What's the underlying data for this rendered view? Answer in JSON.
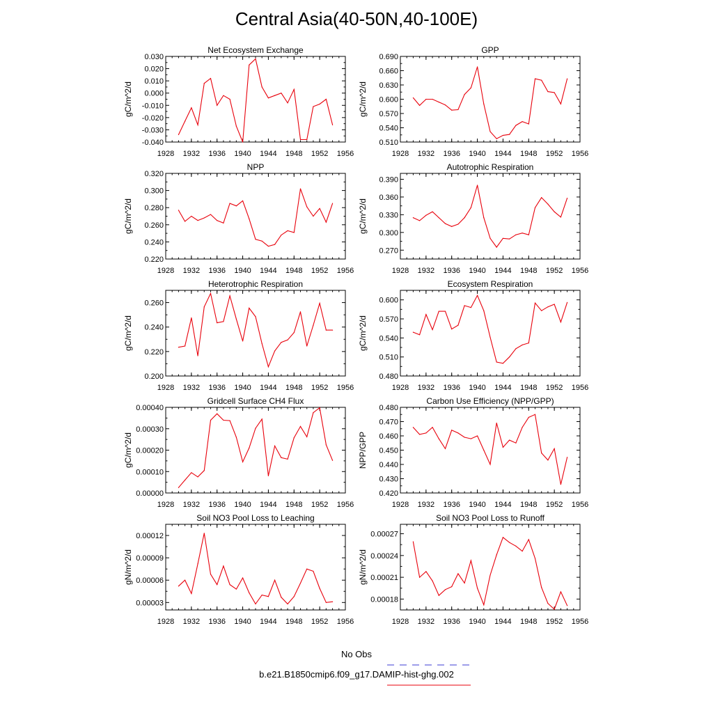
{
  "figure": {
    "title": "Central Asia(40-50N,40-100E)",
    "line_color": "#e8000b",
    "legend": {
      "obs_label": "No Obs",
      "obs_color": "#3b3bd6",
      "model_label": "b.e21.B1850cmip6.f09_g17.DAMIP-hist-ghg.002",
      "model_color": "#e8000b"
    }
  },
  "chart_data": [
    {
      "type": "line",
      "title": "Net Ecosystem Exchange",
      "ylabel": "gC/m^2/d",
      "xlim": [
        1928,
        1956
      ],
      "xticks": [
        1928,
        1932,
        1936,
        1940,
        1944,
        1948,
        1952,
        1956
      ],
      "ylim": [
        -0.04,
        0.03
      ],
      "yticks": [
        "-0.040",
        "-0.030",
        "-0.020",
        "-0.010",
        "0.000",
        "0.010",
        "0.020",
        "0.030"
      ],
      "grid": false,
      "x": [
        1930,
        1931,
        1932,
        1933,
        1934,
        1935,
        1936,
        1937,
        1938,
        1939,
        1940,
        1941,
        1942,
        1943,
        1944,
        1945,
        1946,
        1947,
        1948,
        1949,
        1950,
        1951,
        1952,
        1953,
        1954
      ],
      "values": [
        -0.034,
        -0.023,
        -0.012,
        -0.026,
        0.008,
        0.012,
        -0.01,
        -0.002,
        -0.005,
        -0.027,
        -0.04,
        0.023,
        0.028,
        0.005,
        -0.004,
        -0.002,
        0.0,
        -0.008,
        0.003,
        -0.038,
        -0.038,
        -0.011,
        -0.009,
        -0.005,
        -0.026
      ]
    },
    {
      "type": "line",
      "title": "GPP",
      "ylabel": "gC/m^2/d",
      "xlim": [
        1928,
        1956
      ],
      "xticks": [
        1928,
        1932,
        1936,
        1940,
        1944,
        1948,
        1952,
        1956
      ],
      "ylim": [
        0.51,
        0.69
      ],
      "yticks": [
        "0.510",
        "0.540",
        "0.570",
        "0.600",
        "0.630",
        "0.660",
        "0.690"
      ],
      "grid": false,
      "x": [
        1930,
        1931,
        1932,
        1933,
        1934,
        1935,
        1936,
        1937,
        1938,
        1939,
        1940,
        1941,
        1942,
        1943,
        1944,
        1945,
        1946,
        1947,
        1948,
        1949,
        1950,
        1951,
        1952,
        1953,
        1954
      ],
      "values": [
        0.603,
        0.587,
        0.6,
        0.6,
        0.594,
        0.588,
        0.577,
        0.578,
        0.61,
        0.624,
        0.668,
        0.59,
        0.532,
        0.517,
        0.524,
        0.526,
        0.545,
        0.553,
        0.548,
        0.643,
        0.64,
        0.616,
        0.614,
        0.59,
        0.643
      ]
    },
    {
      "type": "line",
      "title": "NPP",
      "ylabel": "gC/m^2/d",
      "xlim": [
        1928,
        1956
      ],
      "xticks": [
        1928,
        1932,
        1936,
        1940,
        1944,
        1948,
        1952,
        1956
      ],
      "ylim": [
        0.22,
        0.32
      ],
      "yticks": [
        "0.220",
        "0.240",
        "0.260",
        "0.280",
        "0.300",
        "0.320"
      ],
      "grid": false,
      "x": [
        1930,
        1931,
        1932,
        1933,
        1934,
        1935,
        1936,
        1937,
        1938,
        1939,
        1940,
        1941,
        1942,
        1943,
        1944,
        1945,
        1946,
        1947,
        1948,
        1949,
        1950,
        1951,
        1952,
        1953,
        1954
      ],
      "values": [
        0.277,
        0.264,
        0.27,
        0.265,
        0.268,
        0.272,
        0.265,
        0.262,
        0.285,
        0.282,
        0.288,
        0.267,
        0.243,
        0.241,
        0.235,
        0.237,
        0.248,
        0.253,
        0.251,
        0.302,
        0.281,
        0.27,
        0.279,
        0.263,
        0.285
      ]
    },
    {
      "type": "line",
      "title": "Autotrophic Respiration",
      "ylabel": "gC/m^2/d",
      "xlim": [
        1928,
        1956
      ],
      "xticks": [
        1928,
        1932,
        1936,
        1940,
        1944,
        1948,
        1952,
        1956
      ],
      "ylim": [
        0.255,
        0.4
      ],
      "yticks": [
        "0.270",
        "0.300",
        "0.330",
        "0.360",
        "0.390"
      ],
      "grid": false,
      "x": [
        1930,
        1931,
        1932,
        1933,
        1934,
        1935,
        1936,
        1937,
        1938,
        1939,
        1940,
        1941,
        1942,
        1943,
        1944,
        1945,
        1946,
        1947,
        1948,
        1949,
        1950,
        1951,
        1952,
        1953,
        1954
      ],
      "values": [
        0.325,
        0.32,
        0.329,
        0.335,
        0.325,
        0.315,
        0.31,
        0.314,
        0.325,
        0.342,
        0.38,
        0.325,
        0.29,
        0.275,
        0.29,
        0.289,
        0.296,
        0.299,
        0.296,
        0.342,
        0.359,
        0.348,
        0.335,
        0.326,
        0.358
      ]
    },
    {
      "type": "line",
      "title": "Heterotrophic Respiration",
      "ylabel": "gC/m^2/d",
      "xlim": [
        1928,
        1956
      ],
      "xticks": [
        1928,
        1932,
        1936,
        1940,
        1944,
        1948,
        1952,
        1956
      ],
      "ylim": [
        0.2,
        0.27
      ],
      "yticks": [
        "0.200",
        "0.220",
        "0.240",
        "0.260"
      ],
      "grid": false,
      "x": [
        1930,
        1931,
        1932,
        1933,
        1934,
        1935,
        1936,
        1937,
        1938,
        1939,
        1940,
        1941,
        1942,
        1943,
        1944,
        1945,
        1946,
        1947,
        1948,
        1949,
        1950,
        1951,
        1952,
        1953,
        1954
      ],
      "values": [
        0.2235,
        0.2245,
        0.2475,
        0.2165,
        0.2565,
        0.2675,
        0.2435,
        0.2445,
        0.2655,
        0.2465,
        0.2285,
        0.2555,
        0.2485,
        0.2265,
        0.2075,
        0.2205,
        0.2275,
        0.2295,
        0.2355,
        0.2525,
        0.2245,
        0.2415,
        0.2595,
        0.2375,
        0.2375
      ]
    },
    {
      "type": "line",
      "title": "Ecosystem Respiration",
      "ylabel": "gC/m^2/d",
      "xlim": [
        1928,
        1956
      ],
      "xticks": [
        1928,
        1932,
        1936,
        1940,
        1944,
        1948,
        1952,
        1956
      ],
      "ylim": [
        0.48,
        0.615
      ],
      "yticks": [
        "0.480",
        "0.510",
        "0.540",
        "0.570",
        "0.600"
      ],
      "grid": false,
      "x": [
        1930,
        1931,
        1932,
        1933,
        1934,
        1935,
        1936,
        1937,
        1938,
        1939,
        1940,
        1941,
        1942,
        1943,
        1944,
        1945,
        1946,
        1947,
        1948,
        1949,
        1950,
        1951,
        1952,
        1953,
        1954
      ],
      "values": [
        0.549,
        0.545,
        0.577,
        0.553,
        0.582,
        0.582,
        0.554,
        0.56,
        0.591,
        0.588,
        0.607,
        0.583,
        0.541,
        0.502,
        0.5,
        0.51,
        0.523,
        0.529,
        0.532,
        0.595,
        0.583,
        0.589,
        0.593,
        0.565,
        0.596
      ]
    },
    {
      "type": "line",
      "title": "Gridcell Surface CH4 Flux",
      "ylabel": "gC/m^2/d",
      "xlim": [
        1928,
        1956
      ],
      "xticks": [
        1928,
        1932,
        1936,
        1940,
        1944,
        1948,
        1952,
        1956
      ],
      "ylim": [
        0.0,
        0.0004
      ],
      "yticks": [
        "0.00000",
        "0.00010",
        "0.00020",
        "0.00030",
        "0.00040"
      ],
      "grid": false,
      "x": [
        1930,
        1931,
        1932,
        1933,
        1934,
        1935,
        1936,
        1937,
        1938,
        1939,
        1940,
        1941,
        1942,
        1943,
        1944,
        1945,
        1946,
        1947,
        1948,
        1949,
        1950,
        1951,
        1952,
        1953,
        1954
      ],
      "values": [
        2.5e-05,
        6e-05,
        9.5e-05,
        7.5e-05,
        0.000105,
        0.00034,
        0.00037,
        0.00034,
        0.000338,
        0.00026,
        0.000145,
        0.00021,
        0.000302,
        0.000345,
        8e-05,
        0.00022,
        0.000165,
        0.000158,
        0.000258,
        0.000311,
        0.000262,
        0.000375,
        0.000398,
        0.000225,
        0.000152
      ]
    },
    {
      "type": "line",
      "title": "Carbon Use Efficiency (NPP/GPP)",
      "ylabel": "NPP/GPP",
      "xlim": [
        1928,
        1956
      ],
      "xticks": [
        1928,
        1932,
        1936,
        1940,
        1944,
        1948,
        1952,
        1956
      ],
      "ylim": [
        0.42,
        0.48
      ],
      "yticks": [
        "0.420",
        "0.430",
        "0.440",
        "0.450",
        "0.460",
        "0.470",
        "0.480"
      ],
      "grid": false,
      "x": [
        1930,
        1931,
        1932,
        1933,
        1934,
        1935,
        1936,
        1937,
        1938,
        1939,
        1940,
        1941,
        1942,
        1943,
        1944,
        1945,
        1946,
        1947,
        1948,
        1949,
        1950,
        1951,
        1952,
        1953,
        1954
      ],
      "values": [
        0.466,
        0.461,
        0.462,
        0.466,
        0.458,
        0.451,
        0.464,
        0.462,
        0.459,
        0.458,
        0.46,
        0.45,
        0.44,
        0.469,
        0.452,
        0.457,
        0.455,
        0.466,
        0.473,
        0.475,
        0.448,
        0.443,
        0.451,
        0.426,
        0.445
      ]
    },
    {
      "type": "line",
      "title": "Soil NO3 Pool Loss to Leaching",
      "ylabel": "gN/m^2/d",
      "xlim": [
        1928,
        1956
      ],
      "xticks": [
        1928,
        1932,
        1936,
        1940,
        1944,
        1948,
        1952,
        1956
      ],
      "ylim": [
        2e-05,
        0.000135
      ],
      "yticks": [
        "0.00003",
        "0.00006",
        "0.00009",
        "0.00012"
      ],
      "grid": false,
      "x": [
        1930,
        1931,
        1932,
        1933,
        1934,
        1935,
        1936,
        1937,
        1938,
        1939,
        1940,
        1941,
        1942,
        1943,
        1944,
        1945,
        1946,
        1947,
        1948,
        1949,
        1950,
        1951,
        1952,
        1953,
        1954
      ],
      "values": [
        5.2e-05,
        6e-05,
        4.2e-05,
        8.2e-05,
        0.000123,
        6.8e-05,
        5.4e-05,
        7.9e-05,
        5.4e-05,
        4.8e-05,
        6.3e-05,
        4.3e-05,
        2.8e-05,
        4e-05,
        3.8e-05,
        6e-05,
        3.7e-05,
        2.8e-05,
        3.8e-05,
        5.6e-05,
        7.5e-05,
        7.2e-05,
        4.9e-05,
        3e-05,
        3.1e-05
      ]
    },
    {
      "type": "line",
      "title": "Soil NO3 Pool Loss to Runoff",
      "ylabel": "gN/m^2/d",
      "xlim": [
        1928,
        1956
      ],
      "xticks": [
        1928,
        1932,
        1936,
        1940,
        1944,
        1948,
        1952,
        1956
      ],
      "ylim": [
        0.000165,
        0.000283
      ],
      "yticks": [
        "0.00018",
        "0.00021",
        "0.00024",
        "0.00027"
      ],
      "grid": false,
      "x": [
        1930,
        1931,
        1932,
        1933,
        1934,
        1935,
        1936,
        1937,
        1938,
        1939,
        1940,
        1941,
        1942,
        1943,
        1944,
        1945,
        1946,
        1947,
        1948,
        1949,
        1950,
        1951,
        1952,
        1953,
        1954
      ],
      "values": [
        0.000259,
        0.00021,
        0.000218,
        0.000205,
        0.000185,
        0.000193,
        0.000197,
        0.000215,
        0.000202,
        0.000233,
        0.000195,
        0.000172,
        0.000213,
        0.000241,
        0.000265,
        0.000258,
        0.000253,
        0.000246,
        0.000262,
        0.000236,
        0.000196,
        0.000174,
        0.000166,
        0.00019,
        0.000171
      ]
    }
  ]
}
